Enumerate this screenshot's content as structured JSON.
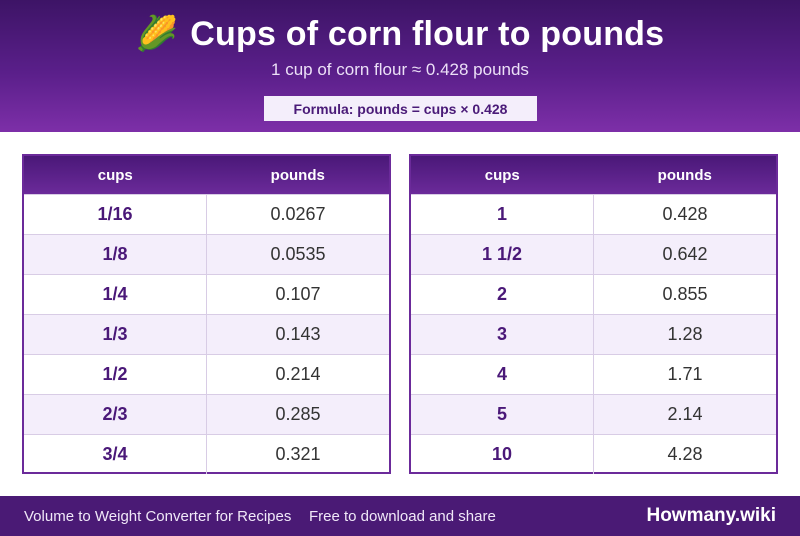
{
  "header": {
    "icon": "corn-icon",
    "icon_glyph": "🌽",
    "title": "Cups of corn flour to pounds",
    "subtitle": "1 cup of corn flour ≈ 0.428 pounds",
    "formula": "Formula: pounds = cups × 0.428"
  },
  "tables": {
    "left": {
      "col1": "cups",
      "col2": "pounds",
      "rows": [
        {
          "cups": "1/16",
          "pounds": "0.0267"
        },
        {
          "cups": "1/8",
          "pounds": "0.0535"
        },
        {
          "cups": "1/4",
          "pounds": "0.107"
        },
        {
          "cups": "1/3",
          "pounds": "0.143"
        },
        {
          "cups": "1/2",
          "pounds": "0.214"
        },
        {
          "cups": "2/3",
          "pounds": "0.285"
        },
        {
          "cups": "3/4",
          "pounds": "0.321"
        }
      ]
    },
    "right": {
      "col1": "cups",
      "col2": "pounds",
      "rows": [
        {
          "cups": "1",
          "pounds": "0.428"
        },
        {
          "cups": "1 1/2",
          "pounds": "0.642"
        },
        {
          "cups": "2",
          "pounds": "0.855"
        },
        {
          "cups": "3",
          "pounds": "1.28"
        },
        {
          "cups": "4",
          "pounds": "1.71"
        },
        {
          "cups": "5",
          "pounds": "2.14"
        },
        {
          "cups": "10",
          "pounds": "4.28"
        }
      ]
    }
  },
  "footer": {
    "left_text": "Volume to Weight Converter for Recipes",
    "middle_text": "Free to download and share",
    "brand": "Howmany.wiki"
  },
  "colors": {
    "primary": "#4a1a75",
    "accent": "#7d2fa8",
    "row_alt": "#f4eefb"
  }
}
